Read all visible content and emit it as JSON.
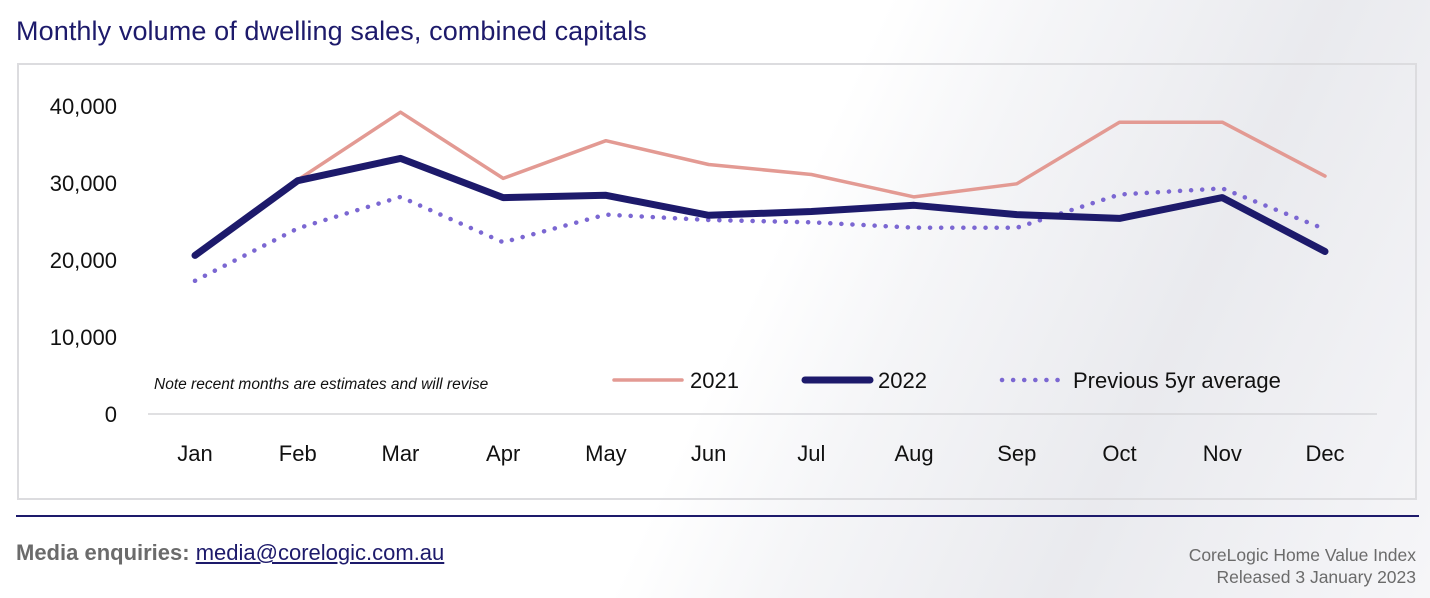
{
  "title": "Monthly volume of dwelling sales, combined capitals",
  "note": "Note recent months are estimates and will revise",
  "footer": {
    "media_label": "Media enquiries:",
    "media_email": "media@corelogic.com.au",
    "source_line1": "CoreLogic Home Value Index",
    "source_line2": "Released 3 January 2023"
  },
  "colors": {
    "title": "#1d1a6b",
    "series_2021": "#e39a93",
    "series_2022": "#1d1a6b",
    "series_avg": "#7b67d2",
    "axis": "#d6d6d9"
  },
  "chart_data": {
    "type": "line",
    "title": "Monthly volume of dwelling sales, combined capitals",
    "xlabel": "",
    "ylabel": "",
    "ylim": [
      0,
      40000
    ],
    "yticks": [
      0,
      10000,
      20000,
      30000,
      40000
    ],
    "ytick_labels": [
      "0",
      "10,000",
      "20,000",
      "30,000",
      "40,000"
    ],
    "categories": [
      "Jan",
      "Feb",
      "Mar",
      "Apr",
      "May",
      "Jun",
      "Jul",
      "Aug",
      "Sep",
      "Oct",
      "Nov",
      "Dec"
    ],
    "legend_position": "bottom-right",
    "series": [
      {
        "name": "2021",
        "style": "solid-thin",
        "values": [
          null,
          30400,
          39200,
          30600,
          35500,
          32400,
          31100,
          28200,
          29900,
          37900,
          37900,
          30900
        ]
      },
      {
        "name": "2022",
        "style": "solid-thick",
        "values": [
          20600,
          30300,
          33200,
          28100,
          28400,
          25800,
          26300,
          27100,
          25900,
          25400,
          28100,
          21100
        ]
      },
      {
        "name": "Previous 5yr average",
        "style": "dotted",
        "values": [
          17300,
          24100,
          28200,
          22300,
          25900,
          25200,
          24900,
          24200,
          24200,
          28500,
          29300,
          24000
        ]
      }
    ]
  }
}
